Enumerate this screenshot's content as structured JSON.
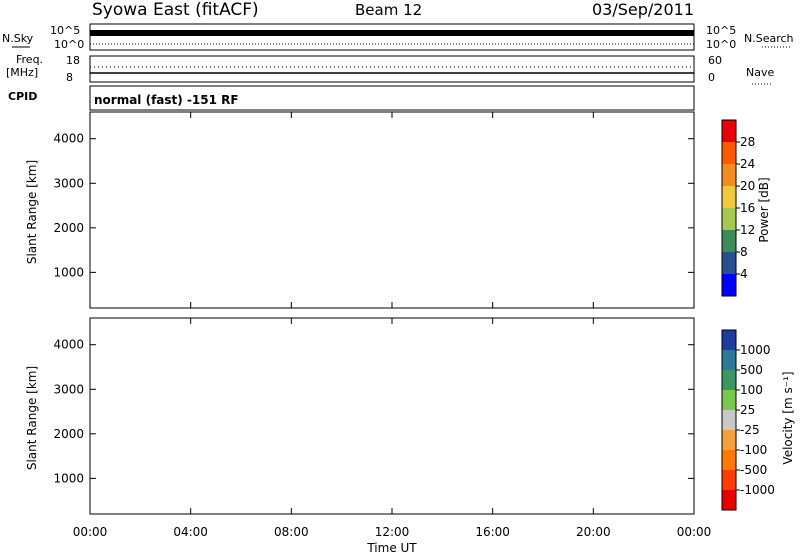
{
  "header": {
    "station": "Syowa East (fitACF)",
    "beam": "Beam 12",
    "date": "03/Sep/2011"
  },
  "top_panels": {
    "nsky_label": "N.Sky",
    "nsearch_label": "N.Search",
    "nsky_ticks": [
      "10^5",
      "10^0"
    ],
    "freq_label_1": "Freq.",
    "freq_label_2": "[MHz]",
    "freq_ticks": [
      "18",
      "8"
    ],
    "nave_label": "Nave",
    "nave_ticks": [
      "60",
      "0"
    ],
    "cpid_label": "CPID",
    "mode_text": "normal (fast) -151 RF"
  },
  "chart_data": [
    {
      "type": "heatmap",
      "name": "power",
      "ylabel": "Slant Range [km]",
      "yticks": [
        1000,
        2000,
        3000,
        4000
      ],
      "ylim": [
        200,
        4600
      ],
      "xlim_hours": [
        0,
        24
      ],
      "colorbar_label": "Power [dB]",
      "colorbar_ticks": [
        "28",
        "24",
        "20",
        "16",
        "12",
        "8",
        "4"
      ],
      "colorbar_colors": [
        "#e8000a",
        "#ff5a00",
        "#f58c1e",
        "#f0c83c",
        "#a5c850",
        "#3c8c5a",
        "#28508c",
        "#0000ff"
      ]
    },
    {
      "type": "heatmap",
      "name": "velocity",
      "ylabel": "Slant Range [km]",
      "yticks": [
        1000,
        2000,
        3000,
        4000
      ],
      "ylim": [
        200,
        4600
      ],
      "xlim_hours": [
        0,
        24
      ],
      "xticks": [
        "00:00",
        "04:00",
        "08:00",
        "12:00",
        "16:00",
        "20:00",
        "00:00"
      ],
      "xlabel": "Time UT",
      "colorbar_label": "Velocity [m s⁻¹]",
      "colorbar_ticks": [
        "1000",
        "500",
        "100",
        "25",
        "-25",
        "-100",
        "-500",
        "-1000"
      ],
      "colorbar_colors": [
        "#1e3ca0",
        "#2d7896",
        "#3c9664",
        "#78c850",
        "#c8c8c8",
        "#f5a03c",
        "#ff7800",
        "#ff3c00",
        "#e60000"
      ]
    }
  ]
}
